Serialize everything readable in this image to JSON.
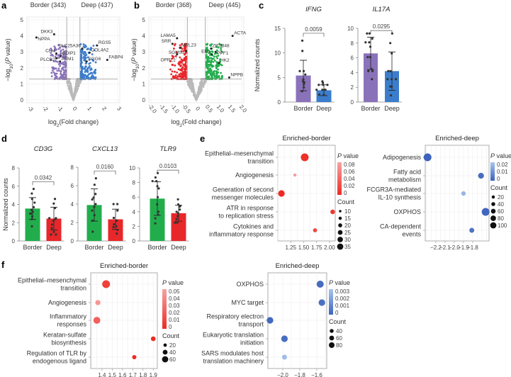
{
  "panels": {
    "a": "a",
    "b": "b",
    "c": "c",
    "d": "d",
    "e": "e",
    "f": "f"
  },
  "colors": {
    "border_purple": "#8a72ba",
    "deep_blue": "#3b7dcc",
    "border_green": "#22ad4c",
    "deep_red": "#e8272b",
    "grey": "#b9b9b9",
    "red": "#ee2a22",
    "red_light": "#f6a3a3",
    "blue": "#3d63bb",
    "blue_light": "#a8c5ec"
  },
  "chart_data": [
    {
      "id": "a",
      "type": "scatter",
      "subtype": "volcano",
      "left_title": "Border (343)",
      "right_title": "Deep (437)",
      "xlabel_parts": [
        "log",
        "2",
        "(Fold change)"
      ],
      "ylabel_parts": [
        "−log",
        "10",
        "(",
        ")",
        "P",
        " value"
      ],
      "xlim": [
        -3,
        3
      ],
      "ylim": [
        0,
        5
      ],
      "xticks": [
        "-3",
        "-2",
        "-1",
        "0",
        "1",
        "2",
        "3"
      ],
      "yticks": [
        "0",
        "1",
        "2",
        "3",
        "4",
        "5"
      ],
      "p_threshold": 1.3,
      "fc_threshold": 0.45,
      "n_border": 343,
      "n_deep": 437,
      "genes": [
        {
          "name": "NPPA",
          "x": -2.5,
          "y": 3.9
        },
        {
          "name": "DKK3",
          "x": -1.3,
          "y": 4.1
        },
        {
          "name": "SLC25A36",
          "x": 0.6,
          "y": 3.2
        },
        {
          "name": "RGS5",
          "x": 1.6,
          "y": 3.4
        },
        {
          "name": "CFH",
          "x": -1.15,
          "y": 2.9
        },
        {
          "name": "CDIP1",
          "x": -0.85,
          "y": 2.75
        },
        {
          "name": "COL4A2",
          "x": 1.1,
          "y": 2.95
        },
        {
          "name": "FABP4",
          "x": 2.3,
          "y": 2.5
        },
        {
          "name": "PLCB2",
          "x": -1.15,
          "y": 2.6
        },
        {
          "name": "PTM1",
          "x": -0.9,
          "y": 2.4
        },
        {
          "name": "SGG6",
          "x": 0.9,
          "y": 2.4
        }
      ]
    },
    {
      "id": "b",
      "type": "scatter",
      "subtype": "volcano",
      "left_title": "Border (368)",
      "right_title": "Deep (445)",
      "xlabel_parts": [
        "log",
        "2",
        "(Fold change)"
      ],
      "ylabel_parts": [
        "−log",
        "10",
        "(",
        ")",
        "P",
        " value"
      ],
      "xlim": [
        -2,
        2
      ],
      "ylim": [
        0,
        5
      ],
      "xticks": [
        "-2.0",
        "-1.5",
        "-1.0",
        "-0.5",
        "0",
        "0.5",
        "1.0",
        "1.5",
        "2.0"
      ],
      "yticks": [
        "0",
        "1",
        "2",
        "3",
        "4",
        "5"
      ],
      "p_threshold": 1.3,
      "fc_threshold": 0.4,
      "n_border": 368,
      "n_deep": 445,
      "genes": [
        {
          "name": "LAMA5",
          "x": -0.85,
          "y": 3.85
        },
        {
          "name": "SRR",
          "x": -1.05,
          "y": 3.5
        },
        {
          "name": "MRL23",
          "x": -0.72,
          "y": 3.25
        },
        {
          "name": "SGMS1",
          "x": -0.45,
          "y": 3.05
        },
        {
          "name": "OPRL1",
          "x": -0.85,
          "y": 2.85
        },
        {
          "name": "ZBTB48",
          "x": 0.65,
          "y": 3.2
        },
        {
          "name": "PPF1",
          "x": 0.85,
          "y": 3.0
        },
        {
          "name": "EN1",
          "x": 0.68,
          "y": 2.85
        },
        {
          "name": "HK2",
          "x": 1.0,
          "y": 2.3
        },
        {
          "name": "NPPB",
          "x": 1.45,
          "y": 1.4
        },
        {
          "name": "ACTA",
          "x": 1.6,
          "y": 4.0
        }
      ]
    },
    {
      "id": "c1",
      "type": "bar",
      "title": "IFNG",
      "ylabel": "Normalized counts",
      "categories": [
        "Border",
        "Deep"
      ],
      "ylim": [
        0,
        15
      ],
      "yticks": [
        "0",
        "5",
        "10",
        "15"
      ],
      "p_label": "0.0059",
      "means": [
        5.4,
        2.4
      ],
      "sd": [
        3.1,
        1.1
      ],
      "points": [
        [
          12.5,
          10.4,
          6.3,
          6.3,
          5.6,
          4.6,
          4.2,
          4.0,
          3.6,
          3.0,
          2.2
        ],
        [
          4.2,
          3.9,
          3.5,
          3.5,
          3.5,
          2.5,
          2.5,
          2.5,
          2.5,
          1.5,
          1.5
        ]
      ]
    },
    {
      "id": "c2",
      "type": "bar",
      "title": "IL17A",
      "categories": [
        "Border",
        "Deep"
      ],
      "ylim": [
        0,
        10
      ],
      "yticks": [
        "0",
        "2",
        "4",
        "6",
        "8",
        "10"
      ],
      "p_label": "0.0295",
      "means": [
        6.6,
        4.2
      ],
      "sd": [
        2.2,
        2.6
      ],
      "points": [
        [
          9.3,
          9.3,
          8.6,
          8.1,
          8.1,
          7.5,
          6.1,
          6.1,
          4.5,
          4.2,
          4.2,
          3.1
        ],
        [
          9.3,
          8.0,
          6.6,
          4.2,
          4.2,
          3.1,
          3.1,
          3.1,
          2.1,
          2.1,
          0.9
        ]
      ]
    },
    {
      "id": "d1",
      "type": "bar",
      "title": "CD3G",
      "ylabel": "Normalized counts",
      "categories": [
        "Border",
        "Deep"
      ],
      "ylim": [
        0,
        8
      ],
      "yticks": [
        "0",
        "2",
        "4",
        "6",
        "8"
      ],
      "p_label": "0.0342",
      "means": [
        3.55,
        2.45
      ],
      "sd": [
        1.2,
        1.25
      ],
      "points": [
        [
          5.7,
          5.2,
          4.6,
          4.2,
          3.7,
          3.4,
          3.2,
          3.0,
          3.0,
          2.7,
          2.4,
          1.6
        ],
        [
          4.6,
          4.1,
          3.6,
          2.5,
          2.5,
          2.4,
          2.2,
          1.8,
          1.4,
          1.0,
          0.7,
          0.7
        ]
      ]
    },
    {
      "id": "d2",
      "type": "bar",
      "title": "CXCL13",
      "categories": [
        "Border",
        "Deep"
      ],
      "ylim": [
        0,
        8
      ],
      "yticks": [
        "0",
        "2",
        "4",
        "6",
        "8"
      ],
      "p_label": "0.0160",
      "means": [
        3.9,
        2.35
      ],
      "sd": [
        1.75,
        1.1
      ],
      "points": [
        [
          6.8,
          6.1,
          5.1,
          4.7,
          4.5,
          4.0,
          3.7,
          3.3,
          2.8,
          2.2,
          1.0
        ],
        [
          4.0,
          4.0,
          3.3,
          2.5,
          2.2,
          1.8,
          1.6,
          1.5,
          1.2,
          0.8
        ]
      ]
    },
    {
      "id": "d3",
      "type": "bar",
      "title": "TLR9",
      "categories": [
        "Border",
        "Deep"
      ],
      "ylim": [
        0,
        10
      ],
      "yticks": [
        "0",
        "2",
        "4",
        "6",
        "8",
        "10"
      ],
      "p_label": "0.0103",
      "means": [
        5.8,
        3.8
      ],
      "sd": [
        2.3,
        1.1
      ],
      "points": [
        [
          9.3,
          8.7,
          8.2,
          8.2,
          7.5,
          7.2,
          6.0,
          5.0,
          4.0,
          3.6,
          3.1,
          2.4
        ],
        [
          5.7,
          5.0,
          4.8,
          4.7,
          4.3,
          4.0,
          3.8,
          3.4,
          3.0,
          2.5,
          2.5
        ]
      ]
    },
    {
      "id": "e1",
      "type": "scatter",
      "subtype": "dotplot",
      "title": "Enriched-border",
      "xlim": [
        1.0,
        2.11
      ],
      "xticks": [
        1.25,
        1.5,
        1.75,
        2.0
      ],
      "xtick_labels": [
        "1.25",
        "1.50",
        "1.75",
        "2.00"
      ],
      "categories": [
        [
          "Epithelial–mesenchymal",
          "transition"
        ],
        [
          "Angiogenesis"
        ],
        [
          "Generation of second",
          "messenger molecules"
        ],
        [
          "ATR in response",
          "to replication stress"
        ],
        [
          "Cytokines and",
          "inflammatory response"
        ]
      ],
      "x": [
        1.52,
        1.33,
        1.07,
        2.06,
        1.72
      ],
      "count": [
        35,
        10,
        28,
        18,
        15
      ],
      "pvalue": [
        0.005,
        0.085,
        0.0,
        0.01,
        0.02
      ],
      "pvalue_legend": {
        "label_italic": "P",
        "label_rest": " value",
        "ticks": [
          "0.08",
          "0.06",
          "0.04",
          "0.02",
          "0"
        ],
        "max": 0.09
      },
      "count_legend": {
        "label": "Count",
        "values": [
          "10",
          "15",
          "20",
          "25",
          "30",
          "35"
        ],
        "min": 10,
        "max": 35
      }
    },
    {
      "id": "e2",
      "type": "scatter",
      "subtype": "dotplot",
      "title": "Enriched-deep",
      "xlim": [
        -2.315,
        -1.623
      ],
      "xticks": [
        -2.2,
        -2.1,
        -2.0,
        -1.9,
        -1.8
      ],
      "xtick_labels": [
        "−2.2",
        "−2.1",
        "−2.0",
        "−1.9",
        "−1.8"
      ],
      "categories": [
        [
          "Adipogenesis"
        ],
        [
          "Fatty acid",
          "metabolism"
        ],
        [
          "FCGR3A-mediated",
          "IL-10 synthesis"
        ],
        [
          "OXPHOS"
        ],
        [
          "CA-dependent",
          "events"
        ]
      ],
      "x": [
        -2.29,
        -1.71,
        -1.9,
        -1.66,
        -1.81
      ],
      "count": [
        100,
        60,
        30,
        100,
        40
      ],
      "pvalue": [
        0.0,
        0.003,
        0.025,
        0.001,
        0.005
      ],
      "pvalue_legend": {
        "label_italic": "P",
        "label_rest": " value",
        "ticks": [
          "0.02",
          "0.01",
          "0"
        ],
        "max": 0.03
      },
      "count_legend": {
        "label": "Count",
        "values": [
          "20",
          "40",
          "60",
          "80",
          "100"
        ],
        "min": 20,
        "max": 100
      }
    },
    {
      "id": "f1",
      "type": "scatter",
      "subtype": "dotplot",
      "title": "Enriched-border",
      "xlim": [
        1.29,
        1.94
      ],
      "xticks": [
        1.4,
        1.5,
        1.6,
        1.7,
        1.8,
        1.9
      ],
      "xtick_labels": [
        "1.4",
        "1.5",
        "1.6",
        "1.7",
        "1.8",
        "1.9"
      ],
      "categories": [
        [
          "Epithelial–mesenchymal",
          "transition"
        ],
        [
          "Angiogenesis"
        ],
        [
          "Inflammatory",
          "responses"
        ],
        [
          "Keratan-sulfate",
          "biosynthesis"
        ],
        [
          "Regulation of TLR by",
          "endogenous ligand"
        ]
      ],
      "x": [
        1.44,
        1.36,
        1.35,
        1.9,
        1.715
      ],
      "count": [
        62,
        30,
        50,
        25,
        18
      ],
      "pvalue": [
        0.01,
        0.05,
        0.025,
        0.0,
        0.0
      ],
      "pvalue_legend": {
        "label_italic": "P",
        "label_rest": " value",
        "ticks": [
          "0.05",
          "0.04",
          "0.03",
          "0.02",
          "0.01",
          "0"
        ],
        "max": 0.055
      },
      "count_legend": {
        "label": "Count",
        "values": [
          "20",
          "40",
          "60"
        ],
        "min": 20,
        "max": 60
      }
    },
    {
      "id": "f2",
      "type": "scatter",
      "subtype": "dotplot",
      "title": "Enriched-deep",
      "xlim": [
        -2.175,
        -1.483
      ],
      "xticks": [
        -2.0,
        -1.8,
        -1.6
      ],
      "xtick_labels": [
        "−2.0",
        "−1.8",
        "−1.6"
      ],
      "categories": [
        [
          "OXPHOS"
        ],
        [
          "MYC target"
        ],
        [
          "Respiratory electron",
          "transport"
        ],
        [
          "Eukaryotic translation",
          "initiation"
        ],
        [
          "SARS modulates host",
          "translation machinery"
        ]
      ],
      "x": [
        -1.56,
        -1.54,
        -2.15,
        -1.98,
        -1.98
      ],
      "count": [
        80,
        70,
        70,
        70,
        35
      ],
      "pvalue": [
        0.0003,
        0.0005,
        0.0002,
        0.0004,
        0.0032
      ],
      "pvalue_legend": {
        "label_italic": "P",
        "label_rest": " value",
        "ticks": [
          "0.003",
          "0.002",
          "0.001",
          "0"
        ],
        "max": 0.0035
      },
      "count_legend": {
        "label": "Count",
        "values": [
          "40",
          "60",
          "80"
        ],
        "min": 40,
        "max": 80
      }
    }
  ]
}
